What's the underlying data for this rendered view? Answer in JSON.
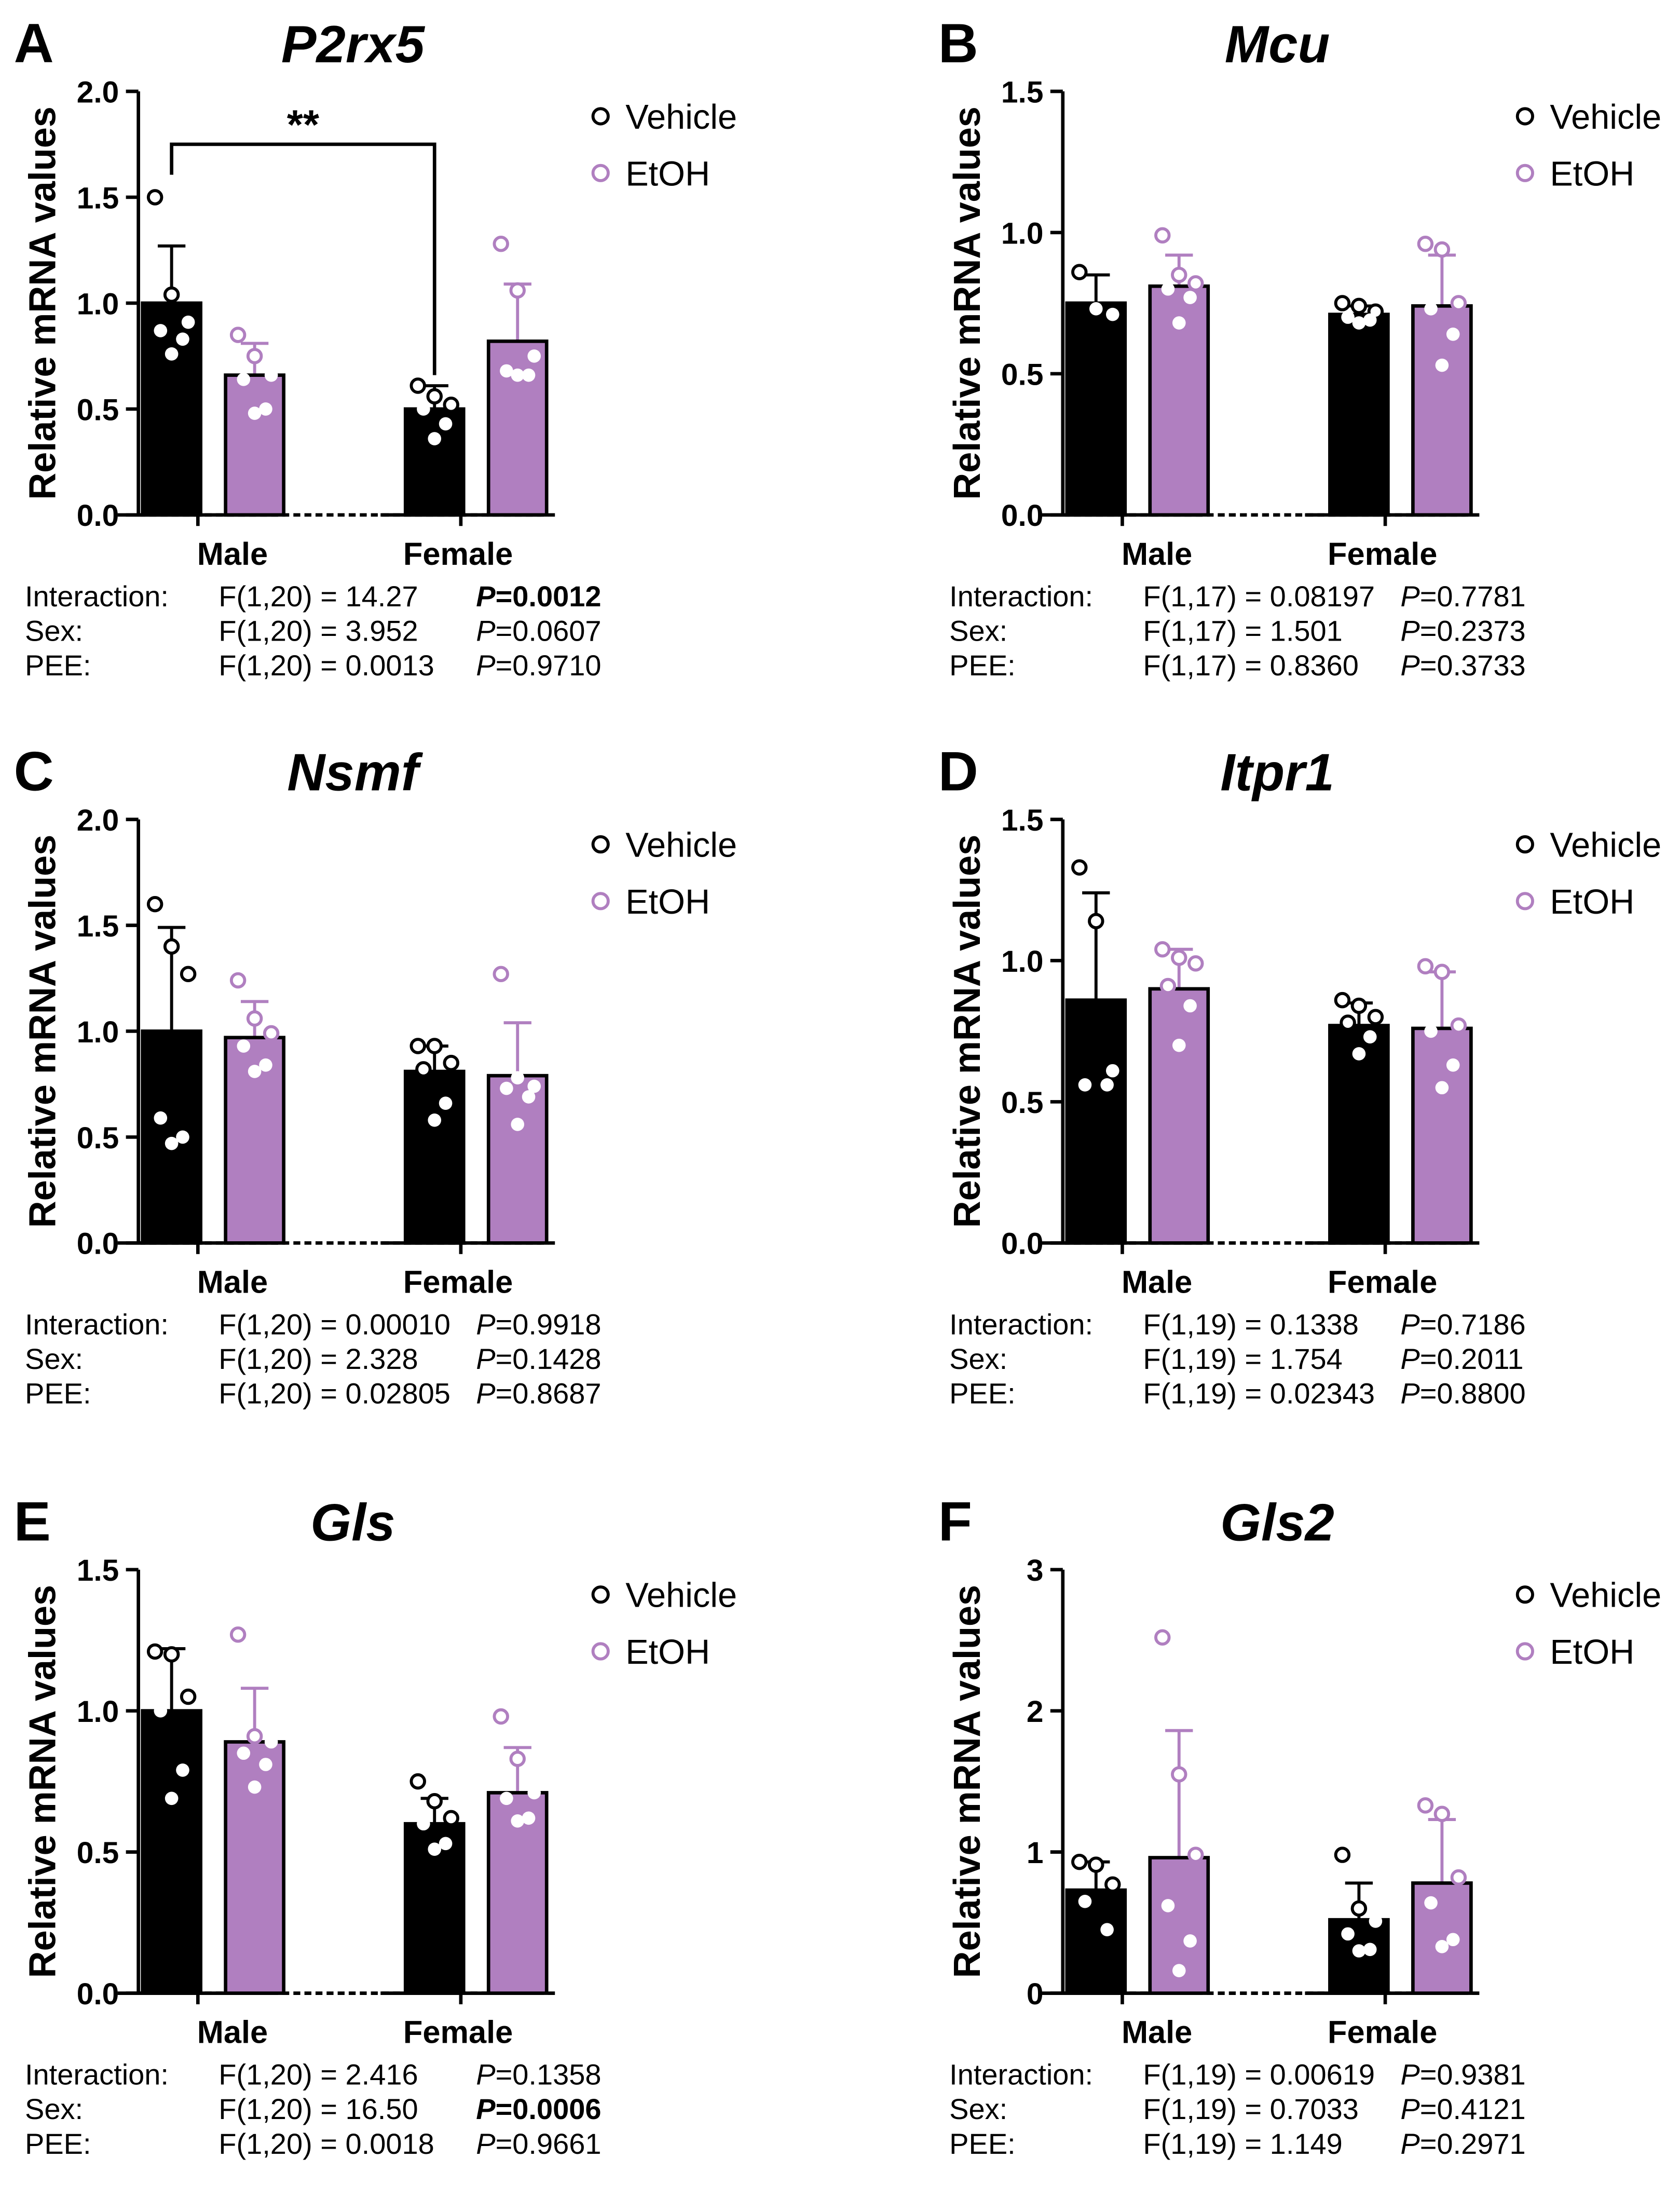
{
  "figure": {
    "legend": {
      "vehicle": "Vehicle",
      "etoh": "EtOH"
    },
    "colors": {
      "vehicle": "#000000",
      "etoh": "#B07FC0",
      "dot_fill": "#ffffff"
    },
    "ylabel": "Relative mRNA values",
    "categories": [
      "Male",
      "Female"
    ],
    "stat_labels": [
      "Interaction:",
      "Sex:",
      "PEE:"
    ]
  },
  "chart_data": [
    {
      "type": "bar",
      "letter": "A",
      "title": "P2rx5",
      "categories": [
        "Male",
        "Female"
      ],
      "ylabel": "Relative mRNA values",
      "ylim": [
        0,
        2.0
      ],
      "yticks": [
        0.0,
        0.5,
        1.0,
        1.5,
        2.0
      ],
      "ytick_labels": [
        "0.0",
        "0.5",
        "1.0",
        "1.5",
        "2.0"
      ],
      "series": [
        {
          "name": "Vehicle",
          "values": [
            1.0,
            0.5
          ],
          "sd": [
            0.27,
            0.11
          ],
          "points": [
            [
              1.5,
              1.04,
              0.91,
              0.87,
              0.83,
              0.76
            ],
            [
              0.61,
              0.56,
              0.52,
              0.5,
              0.43,
              0.36
            ]
          ]
        },
        {
          "name": "EtOH",
          "values": [
            0.66,
            0.82
          ],
          "sd": [
            0.15,
            0.27
          ],
          "points": [
            [
              0.85,
              0.75,
              0.66,
              0.64,
              0.5,
              0.48
            ],
            [
              1.28,
              1.06,
              0.75,
              0.68,
              0.66,
              0.66
            ]
          ]
        }
      ],
      "significance": {
        "label": "**",
        "y": 1.75
      },
      "stats": [
        {
          "label": "Interaction:",
          "f": "F(1,20) = 14.27",
          "p": "=0.0012",
          "bold": true
        },
        {
          "label": "Sex:",
          "f": "F(1,20) = 3.952",
          "p": "=0.0607",
          "bold": false
        },
        {
          "label": "PEE:",
          "f": "F(1,20) = 0.0013",
          "p": "=0.9710",
          "bold": false
        }
      ]
    },
    {
      "type": "bar",
      "letter": "B",
      "title": "Mcu",
      "categories": [
        "Male",
        "Female"
      ],
      "ylabel": "Relative mRNA values",
      "ylim": [
        0,
        1.5
      ],
      "yticks": [
        0.0,
        0.5,
        1.0,
        1.5
      ],
      "ytick_labels": [
        "0.0",
        "0.5",
        "1.0",
        "1.5"
      ],
      "series": [
        {
          "name": "Vehicle",
          "values": [
            0.75,
            0.71
          ],
          "sd": [
            0.1,
            0.03
          ],
          "points": [
            [
              0.86,
              0.73,
              0.71
            ],
            [
              0.75,
              0.74,
              0.72,
              0.7,
              0.69,
              0.68
            ]
          ]
        },
        {
          "name": "EtOH",
          "values": [
            0.81,
            0.74
          ],
          "sd": [
            0.11,
            0.18
          ],
          "points": [
            [
              0.99,
              0.85,
              0.82,
              0.8,
              0.77,
              0.68
            ],
            [
              0.96,
              0.94,
              0.75,
              0.73,
              0.64,
              0.53
            ]
          ]
        }
      ],
      "stats": [
        {
          "label": "Interaction:",
          "f": "F(1,17) = 0.08197",
          "p": "=0.7781",
          "bold": false
        },
        {
          "label": "Sex:",
          "f": "F(1,17) = 1.501",
          "p": "=0.2373",
          "bold": false
        },
        {
          "label": "PEE:",
          "f": "F(1,17) = 0.8360",
          "p": "=0.3733",
          "bold": false
        }
      ]
    },
    {
      "type": "bar",
      "letter": "C",
      "title": "Nsmf",
      "categories": [
        "Male",
        "Female"
      ],
      "ylabel": "Relative mRNA values",
      "ylim": [
        0,
        2.0
      ],
      "yticks": [
        0.0,
        0.5,
        1.0,
        1.5,
        2.0
      ],
      "ytick_labels": [
        "0.0",
        "0.5",
        "1.0",
        "1.5",
        "2.0"
      ],
      "series": [
        {
          "name": "Vehicle",
          "values": [
            1.0,
            0.81
          ],
          "sd": [
            0.49,
            0.12
          ],
          "points": [
            [
              1.6,
              1.4,
              1.27,
              0.59,
              0.5,
              0.47
            ],
            [
              0.93,
              0.93,
              0.85,
              0.82,
              0.66,
              0.58
            ]
          ]
        },
        {
          "name": "EtOH",
          "values": [
            0.97,
            0.79
          ],
          "sd": [
            0.17,
            0.25
          ],
          "points": [
            [
              1.24,
              1.06,
              0.99,
              0.93,
              0.84,
              0.81
            ],
            [
              1.27,
              0.78,
              0.74,
              0.73,
              0.69,
              0.56
            ]
          ]
        }
      ],
      "stats": [
        {
          "label": "Interaction:",
          "f": "F(1,20) = 0.00010",
          "p": "=0.9918",
          "bold": false
        },
        {
          "label": "Sex:",
          "f": "F(1,20) = 2.328",
          "p": "=0.1428",
          "bold": false
        },
        {
          "label": "PEE:",
          "f": "F(1,20) = 0.02805",
          "p": "=0.8687",
          "bold": false
        }
      ]
    },
    {
      "type": "bar",
      "letter": "D",
      "title": "Itpr1",
      "categories": [
        "Male",
        "Female"
      ],
      "ylabel": "Relative mRNA values",
      "ylim": [
        0,
        1.5
      ],
      "yticks": [
        0.0,
        0.5,
        1.0,
        1.5
      ],
      "ytick_labels": [
        "0.0",
        "0.5",
        "1.0",
        "1.5"
      ],
      "series": [
        {
          "name": "Vehicle",
          "values": [
            0.86,
            0.77
          ],
          "sd": [
            0.38,
            0.08
          ],
          "points": [
            [
              1.33,
              1.14,
              0.61,
              0.56,
              0.56
            ],
            [
              0.86,
              0.84,
              0.8,
              0.78,
              0.73,
              0.67
            ]
          ]
        },
        {
          "name": "EtOH",
          "values": [
            0.9,
            0.76
          ],
          "sd": [
            0.14,
            0.2
          ],
          "points": [
            [
              1.04,
              1.01,
              0.99,
              0.91,
              0.84,
              0.7
            ],
            [
              0.98,
              0.96,
              0.77,
              0.75,
              0.63,
              0.55
            ]
          ]
        }
      ],
      "stats": [
        {
          "label": "Interaction:",
          "f": "F(1,19) = 0.1338",
          "p": "=0.7186",
          "bold": false
        },
        {
          "label": "Sex:",
          "f": "F(1,19) = 1.754",
          "p": "=0.2011",
          "bold": false
        },
        {
          "label": "PEE:",
          "f": "F(1,19) = 0.02343",
          "p": "=0.8800",
          "bold": false
        }
      ]
    },
    {
      "type": "bar",
      "letter": "E",
      "title": "Gls",
      "categories": [
        "Male",
        "Female"
      ],
      "ylabel": "Relative mRNA values",
      "ylim": [
        0,
        1.5
      ],
      "yticks": [
        0.0,
        0.5,
        1.0,
        1.5
      ],
      "ytick_labels": [
        "0.0",
        "0.5",
        "1.0",
        "1.5"
      ],
      "series": [
        {
          "name": "Vehicle",
          "values": [
            1.0,
            0.6
          ],
          "sd": [
            0.22,
            0.09
          ],
          "points": [
            [
              1.21,
              1.2,
              1.05,
              1.0,
              0.79,
              0.69
            ],
            [
              0.75,
              0.68,
              0.62,
              0.6,
              0.53,
              0.51
            ]
          ]
        },
        {
          "name": "EtOH",
          "values": [
            0.89,
            0.71
          ],
          "sd": [
            0.19,
            0.16
          ],
          "points": [
            [
              1.27,
              0.91,
              0.89,
              0.85,
              0.81,
              0.73
            ],
            [
              0.98,
              0.83,
              0.71,
              0.69,
              0.62,
              0.61
            ]
          ]
        }
      ],
      "stats": [
        {
          "label": "Interaction:",
          "f": "F(1,20) = 2.416",
          "p": "=0.1358",
          "bold": false
        },
        {
          "label": "Sex:",
          "f": "F(1,20) = 16.50",
          "p": "=0.0006",
          "bold": true
        },
        {
          "label": "PEE:",
          "f": "F(1,20) = 0.0018",
          "p": "=0.9661",
          "bold": false
        }
      ]
    },
    {
      "type": "bar",
      "letter": "F",
      "title": "Gls2",
      "categories": [
        "Male",
        "Female"
      ],
      "ylabel": "Relative mRNA values",
      "ylim": [
        0,
        3
      ],
      "yticks": [
        0,
        1,
        2,
        3
      ],
      "ytick_labels": [
        "0",
        "1",
        "2",
        "3"
      ],
      "series": [
        {
          "name": "Vehicle",
          "values": [
            0.73,
            0.52
          ],
          "sd": [
            0.2,
            0.26
          ],
          "points": [
            [
              0.93,
              0.91,
              0.77,
              0.65,
              0.45
            ],
            [
              0.98,
              0.6,
              0.51,
              0.42,
              0.31,
              0.3
            ]
          ]
        },
        {
          "name": "EtOH",
          "values": [
            0.96,
            0.78
          ],
          "sd": [
            0.9,
            0.45
          ],
          "points": [
            [
              2.52,
              1.55,
              0.98,
              0.62,
              0.37,
              0.16
            ],
            [
              1.33,
              1.27,
              0.82,
              0.64,
              0.38,
              0.33
            ]
          ]
        }
      ],
      "stats": [
        {
          "label": "Interaction:",
          "f": "F(1,19) = 0.00619",
          "p": "=0.9381",
          "bold": false
        },
        {
          "label": "Sex:",
          "f": "F(1,19) = 0.7033",
          "p": "=0.4121",
          "bold": false
        },
        {
          "label": "PEE:",
          "f": "F(1,19) = 1.149",
          "p": "=0.2971",
          "bold": false
        }
      ]
    }
  ]
}
